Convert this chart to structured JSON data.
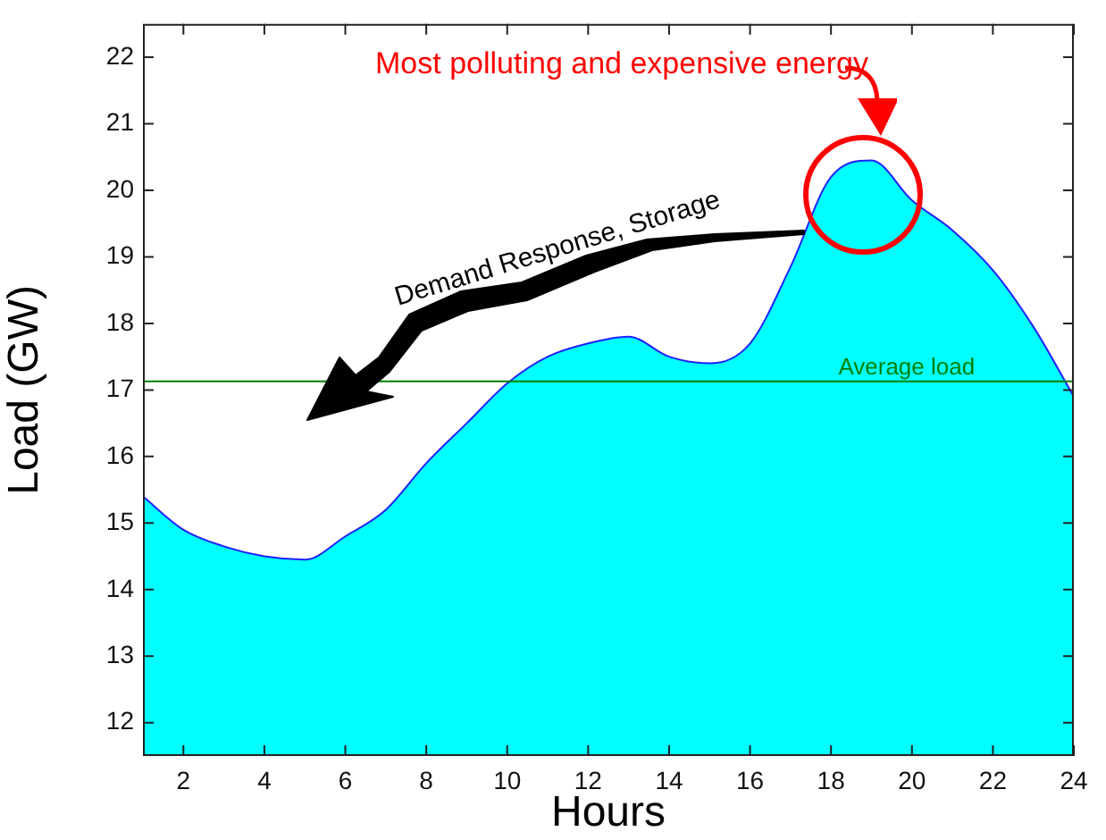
{
  "chart_data": {
    "type": "area",
    "xlabel": "Hours",
    "ylabel": "Load (GW)",
    "x": [
      1,
      2,
      3,
      4,
      5,
      6,
      7,
      8,
      9,
      10,
      11,
      12,
      13,
      14,
      15,
      16,
      17,
      18,
      19,
      20,
      21,
      22,
      23,
      24
    ],
    "series": [
      {
        "color": "#00ffff",
        "values": [
          15.4,
          14.9,
          14.65,
          14.5,
          14.45,
          14.8,
          15.2,
          15.9,
          16.5,
          17.1,
          17.5,
          17.7,
          17.8,
          17.5,
          17.4,
          17.7,
          18.85,
          20.2,
          20.45,
          19.85,
          19.4,
          18.8,
          17.95,
          16.9
        ]
      }
    ],
    "xlim": [
      1,
      24
    ],
    "xticks": [
      2,
      4,
      6,
      8,
      10,
      12,
      14,
      16,
      18,
      20,
      22,
      24
    ],
    "ylim": [
      11.5,
      22.5
    ],
    "yticks": [
      12,
      13,
      14,
      15,
      16,
      17,
      18,
      19,
      20,
      21,
      22
    ],
    "ref_lines": [
      {
        "axis": "y",
        "value": 17.13,
        "label": "Average load",
        "color": "#008000"
      }
    ],
    "annotations": [
      "Most polluting and expensive energy",
      "Demand Response, Storage"
    ],
    "grid": false,
    "legend": false
  }
}
